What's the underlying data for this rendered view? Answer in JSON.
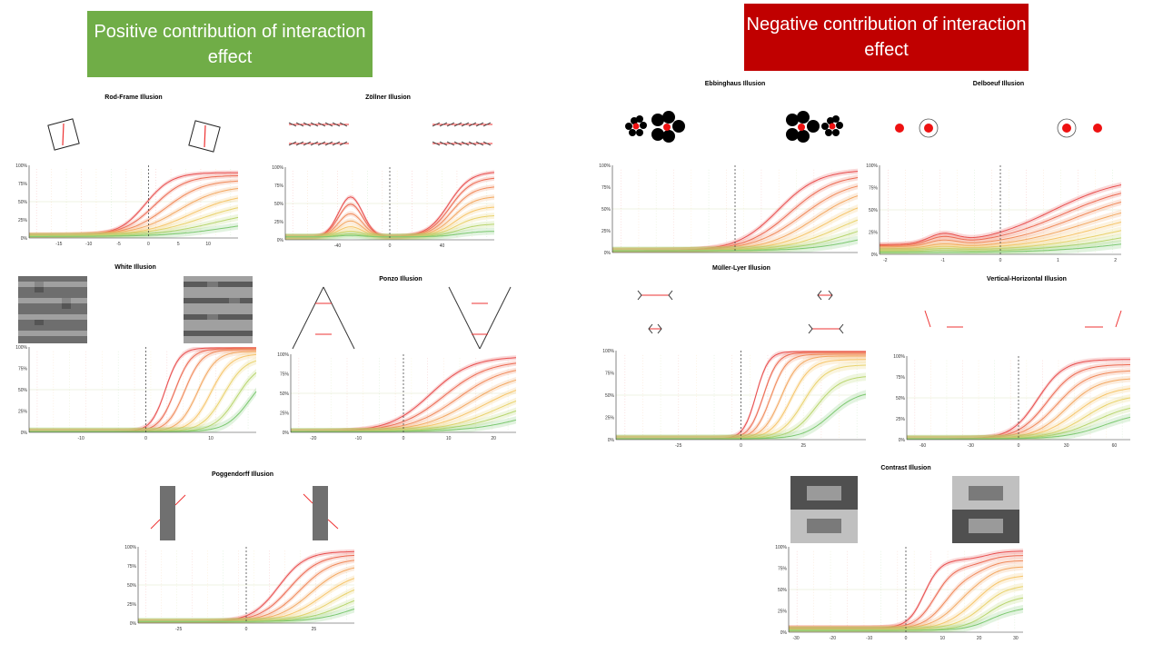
{
  "slide": {
    "positive_banner": "Positive contribution of interaction effect",
    "negative_banner": "Negative contribution of interaction effect"
  },
  "colors": {
    "positive": "#70ad47",
    "negative": "#c00000",
    "ramp": [
      "#e84d4d",
      "#ec6a52",
      "#f08a5a",
      "#f3a862",
      "#f6c56a",
      "#e9d26c",
      "#b8d56e",
      "#7cc870"
    ]
  },
  "chart_data": [
    {
      "id": "rod-frame",
      "type": "line",
      "title": "Rod-Frame Illusion",
      "xlim": [
        -20,
        15
      ],
      "ylim": [
        0,
        1
      ],
      "xticks": [
        "-15",
        "-10",
        "-5",
        "0",
        "5",
        "10"
      ],
      "yticks": [
        "0%",
        "25%",
        "50%",
        "75%",
        "100%"
      ],
      "series": [
        {
          "x0": -0.5,
          "k": 0.45,
          "lo": 0.04,
          "hi": 0.9
        },
        {
          "x0": 1,
          "k": 0.38,
          "lo": 0.04,
          "hi": 0.86
        },
        {
          "x0": 3,
          "k": 0.32,
          "lo": 0.04,
          "hi": 0.8
        },
        {
          "x0": 5,
          "k": 0.28,
          "lo": 0.04,
          "hi": 0.72
        },
        {
          "x0": 7,
          "k": 0.25,
          "lo": 0.03,
          "hi": 0.62
        },
        {
          "x0": 9,
          "k": 0.22,
          "lo": 0.03,
          "hi": 0.52
        },
        {
          "x0": 11,
          "k": 0.2,
          "lo": 0.02,
          "hi": 0.4
        },
        {
          "x0": 13,
          "k": 0.2,
          "lo": 0.02,
          "hi": 0.26
        }
      ]
    },
    {
      "id": "zollner",
      "type": "line",
      "title": "Zöllner Illusion",
      "xlim": [
        -80,
        80
      ],
      "ylim": [
        0,
        1
      ],
      "xticks": [
        "-40",
        "0",
        "40"
      ],
      "yticks": [
        "0%",
        "25%",
        "50%",
        "75%",
        "100%"
      ],
      "series": [
        {
          "bump": 0.55,
          "rise": 0.9,
          "s": 0
        },
        {
          "bump": 0.45,
          "rise": 0.82,
          "s": 4
        },
        {
          "bump": 0.32,
          "rise": 0.7,
          "s": 8
        },
        {
          "bump": 0.22,
          "rise": 0.56,
          "s": 12
        },
        {
          "bump": 0.14,
          "rise": 0.42,
          "s": 16
        },
        {
          "bump": 0.08,
          "rise": 0.3,
          "s": 20
        },
        {
          "bump": 0.04,
          "rise": 0.18,
          "s": 24
        },
        {
          "bump": 0.02,
          "rise": 0.08,
          "s": 28
        }
      ]
    },
    {
      "id": "white",
      "type": "line",
      "title": "White Illusion",
      "xlim": [
        -18,
        17
      ],
      "ylim": [
        0,
        1
      ],
      "xticks": [
        "-10",
        "0",
        "10"
      ],
      "yticks": [
        "0%",
        "25%",
        "50%",
        "75%",
        "100%"
      ],
      "series": [
        {
          "x0": 3,
          "k": 0.9,
          "lo": 0.01,
          "hi": 0.99
        },
        {
          "x0": 4.5,
          "k": 0.8,
          "lo": 0.01,
          "hi": 0.98
        },
        {
          "x0": 6,
          "k": 0.75,
          "lo": 0.01,
          "hi": 0.97
        },
        {
          "x0": 8,
          "k": 0.7,
          "lo": 0.01,
          "hi": 0.95
        },
        {
          "x0": 10,
          "k": 0.65,
          "lo": 0.01,
          "hi": 0.92
        },
        {
          "x0": 12,
          "k": 0.6,
          "lo": 0.01,
          "hi": 0.88
        },
        {
          "x0": 14,
          "k": 0.58,
          "lo": 0.01,
          "hi": 0.82
        },
        {
          "x0": 16,
          "k": 0.55,
          "lo": 0.01,
          "hi": 0.75
        }
      ]
    },
    {
      "id": "ponzo",
      "type": "line",
      "title": "Ponzo Illusion",
      "xlim": [
        -25,
        25
      ],
      "ylim": [
        0,
        1
      ],
      "xticks": [
        "-20",
        "-10",
        "0",
        "10",
        "20"
      ],
      "yticks": [
        "0%",
        "25%",
        "50%",
        "75%",
        "100%"
      ],
      "series": [
        {
          "x0": 6,
          "k": 0.22,
          "lo": 0.01,
          "hi": 0.97
        },
        {
          "x0": 9,
          "k": 0.2,
          "lo": 0.01,
          "hi": 0.92
        },
        {
          "x0": 12,
          "k": 0.19,
          "lo": 0.01,
          "hi": 0.86
        },
        {
          "x0": 15,
          "k": 0.18,
          "lo": 0.01,
          "hi": 0.78
        },
        {
          "x0": 18,
          "k": 0.17,
          "lo": 0.01,
          "hi": 0.7
        },
        {
          "x0": 21,
          "k": 0.17,
          "lo": 0.01,
          "hi": 0.6
        },
        {
          "x0": 24,
          "k": 0.16,
          "lo": 0.01,
          "hi": 0.5
        },
        {
          "x0": 28,
          "k": 0.16,
          "lo": 0.01,
          "hi": 0.4
        }
      ]
    },
    {
      "id": "poggendorff",
      "type": "line",
      "title": "Poggendorff Illusion",
      "xlim": [
        -40,
        40
      ],
      "ylim": [
        0,
        1
      ],
      "xticks": [
        "-25",
        "0",
        "25"
      ],
      "yticks": [
        "0%",
        "25%",
        "50%",
        "75%",
        "100%"
      ],
      "series": [
        {
          "x0": 12,
          "k": 0.2,
          "lo": 0.02,
          "hi": 0.94
        },
        {
          "x0": 16,
          "k": 0.18,
          "lo": 0.02,
          "hi": 0.9
        },
        {
          "x0": 20,
          "k": 0.17,
          "lo": 0.02,
          "hi": 0.85
        },
        {
          "x0": 24,
          "k": 0.16,
          "lo": 0.02,
          "hi": 0.78
        },
        {
          "x0": 28,
          "k": 0.15,
          "lo": 0.02,
          "hi": 0.68
        },
        {
          "x0": 32,
          "k": 0.15,
          "lo": 0.02,
          "hi": 0.56
        },
        {
          "x0": 36,
          "k": 0.14,
          "lo": 0.02,
          "hi": 0.45
        },
        {
          "x0": 40,
          "k": 0.14,
          "lo": 0.02,
          "hi": 0.35
        }
      ]
    },
    {
      "id": "ebbinghaus",
      "type": "line",
      "title": "Ebbinghaus Illusion",
      "xlim": [
        -1,
        1
      ],
      "ylim": [
        0,
        1
      ],
      "xticks": [],
      "yticks": [
        "0%",
        "25%",
        "50%",
        "75%",
        "100%"
      ],
      "series": [
        {
          "x0": 0.35,
          "k": 6,
          "lo": 0.02,
          "hi": 0.95
        },
        {
          "x0": 0.45,
          "k": 5.5,
          "lo": 0.02,
          "hi": 0.9
        },
        {
          "x0": 0.55,
          "k": 5,
          "lo": 0.02,
          "hi": 0.84
        },
        {
          "x0": 0.65,
          "k": 5,
          "lo": 0.02,
          "hi": 0.76
        },
        {
          "x0": 0.75,
          "k": 4.8,
          "lo": 0.02,
          "hi": 0.66
        },
        {
          "x0": 0.85,
          "k": 4.6,
          "lo": 0.02,
          "hi": 0.55
        },
        {
          "x0": 0.95,
          "k": 4.5,
          "lo": 0.02,
          "hi": 0.42
        },
        {
          "x0": 1.05,
          "k": 4.5,
          "lo": 0.02,
          "hi": 0.3
        }
      ]
    },
    {
      "id": "delboeuf",
      "type": "line",
      "title": "Delboeuf Illusion",
      "xlim": [
        -2.1,
        2.1
      ],
      "ylim": [
        0,
        1
      ],
      "xticks": [
        "-2",
        "-1",
        "0",
        "1",
        "2"
      ],
      "yticks": [
        "0%",
        "25%",
        "50%",
        "75%",
        "100%"
      ],
      "series": [
        {
          "x0": 0.9,
          "k": 1.6,
          "lo": 0.1,
          "hi": 0.88,
          "bump": 0.1
        },
        {
          "x0": 1.1,
          "k": 1.5,
          "lo": 0.09,
          "hi": 0.82,
          "bump": 0.08
        },
        {
          "x0": 1.3,
          "k": 1.5,
          "lo": 0.08,
          "hi": 0.74,
          "bump": 0.06
        },
        {
          "x0": 1.5,
          "k": 1.4,
          "lo": 0.06,
          "hi": 0.64,
          "bump": 0.04
        },
        {
          "x0": 1.7,
          "k": 1.4,
          "lo": 0.05,
          "hi": 0.54,
          "bump": 0.03
        },
        {
          "x0": 1.9,
          "k": 1.4,
          "lo": 0.04,
          "hi": 0.44,
          "bump": 0.02
        },
        {
          "x0": 2.1,
          "k": 1.4,
          "lo": 0.03,
          "hi": 0.34,
          "bump": 0.01
        },
        {
          "x0": 2.3,
          "k": 1.4,
          "lo": 0.02,
          "hi": 0.24,
          "bump": 0
        }
      ]
    },
    {
      "id": "muller-lyer",
      "type": "line",
      "title": "Müller-Lyer Illusion",
      "xlim": [
        -50,
        50
      ],
      "ylim": [
        0,
        1
      ],
      "xticks": [
        "-25",
        "0",
        "25"
      ],
      "yticks": [
        "0%",
        "25%",
        "50%",
        "75%",
        "100%"
      ],
      "series": [
        {
          "x0": 6,
          "k": 0.4,
          "lo": 0.01,
          "hi": 0.99
        },
        {
          "x0": 9,
          "k": 0.35,
          "lo": 0.01,
          "hi": 0.98
        },
        {
          "x0": 12,
          "k": 0.32,
          "lo": 0.01,
          "hi": 0.96
        },
        {
          "x0": 16,
          "k": 0.28,
          "lo": 0.01,
          "hi": 0.94
        },
        {
          "x0": 20,
          "k": 0.25,
          "lo": 0.01,
          "hi": 0.9
        },
        {
          "x0": 25,
          "k": 0.22,
          "lo": 0.01,
          "hi": 0.84
        },
        {
          "x0": 30,
          "k": 0.2,
          "lo": 0.01,
          "hi": 0.72
        },
        {
          "x0": 36,
          "k": 0.18,
          "lo": 0.01,
          "hi": 0.55
        }
      ]
    },
    {
      "id": "vertical-horizontal",
      "type": "line",
      "title": "Vertical-Horizontal Illusion",
      "xlim": [
        -70,
        70
      ],
      "ylim": [
        0,
        1
      ],
      "xticks": [
        "-60",
        "-30",
        "0",
        "30",
        "60"
      ],
      "yticks": [
        "0%",
        "25%",
        "50%",
        "75%",
        "100%"
      ],
      "series": [
        {
          "x0": 12,
          "k": 0.12,
          "lo": 0.01,
          "hi": 0.96
        },
        {
          "x0": 18,
          "k": 0.11,
          "lo": 0.01,
          "hi": 0.9
        },
        {
          "x0": 24,
          "k": 0.1,
          "lo": 0.01,
          "hi": 0.83
        },
        {
          "x0": 30,
          "k": 0.1,
          "lo": 0.01,
          "hi": 0.74
        },
        {
          "x0": 36,
          "k": 0.09,
          "lo": 0.01,
          "hi": 0.64
        },
        {
          "x0": 42,
          "k": 0.09,
          "lo": 0.01,
          "hi": 0.54
        },
        {
          "x0": 48,
          "k": 0.08,
          "lo": 0.01,
          "hi": 0.44
        },
        {
          "x0": 54,
          "k": 0.08,
          "lo": 0.01,
          "hi": 0.34
        }
      ]
    },
    {
      "id": "contrast",
      "type": "line",
      "title": "Contrast Illusion",
      "xlim": [
        -32,
        32
      ],
      "ylim": [
        0,
        1
      ],
      "xticks": [
        "-30",
        "-20",
        "-10",
        "0",
        "10",
        "20",
        "30"
      ],
      "yticks": [
        "0%",
        "25%",
        "50%",
        "75%",
        "100%"
      ],
      "series": [
        {
          "x0": 5,
          "k": 0.45,
          "lo": 0.05,
          "hi": 0.85,
          "rise2": 0.1
        },
        {
          "x0": 8,
          "k": 0.38,
          "lo": 0.05,
          "hi": 0.78,
          "rise2": 0.12
        },
        {
          "x0": 11,
          "k": 0.32,
          "lo": 0.04,
          "hi": 0.7,
          "rise2": 0.14
        },
        {
          "x0": 14,
          "k": 0.28,
          "lo": 0.04,
          "hi": 0.62,
          "rise2": 0.15
        },
        {
          "x0": 17,
          "k": 0.25,
          "lo": 0.03,
          "hi": 0.52,
          "rise2": 0.15
        },
        {
          "x0": 20,
          "k": 0.23,
          "lo": 0.03,
          "hi": 0.42,
          "rise2": 0.14
        },
        {
          "x0": 23,
          "k": 0.22,
          "lo": 0.02,
          "hi": 0.32,
          "rise2": 0.12
        },
        {
          "x0": 26,
          "k": 0.2,
          "lo": 0.02,
          "hi": 0.22,
          "rise2": 0.1
        }
      ]
    }
  ]
}
